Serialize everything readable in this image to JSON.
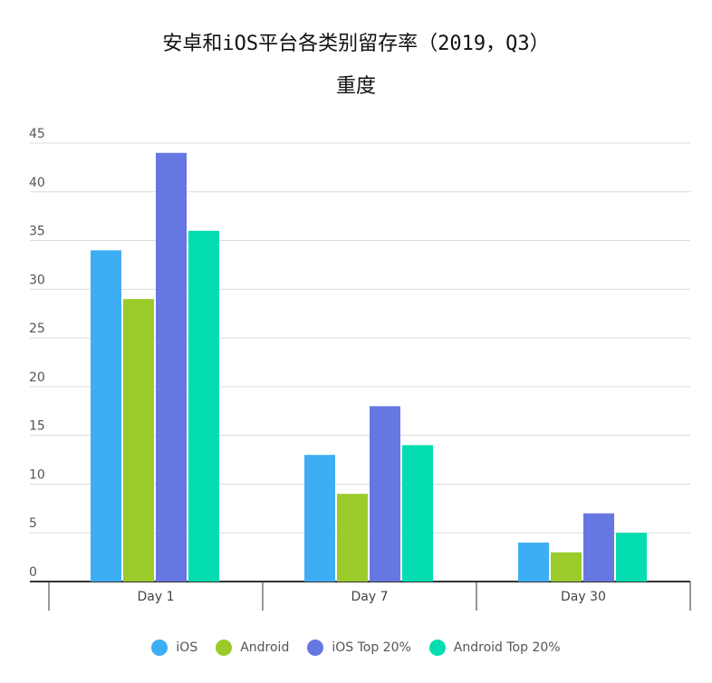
{
  "chart_data": {
    "type": "bar",
    "title": "安卓和iOS平台各类别留存率（2019，Q3）",
    "subtitle": "重度",
    "categories": [
      "Day 1",
      "Day 7",
      "Day 30"
    ],
    "series": [
      {
        "name": "iOS",
        "values": [
          34,
          13,
          4
        ],
        "color": "#3daef3"
      },
      {
        "name": "Android",
        "values": [
          29,
          9,
          3
        ],
        "color": "#9acb2b"
      },
      {
        "name": "iOS Top 20%",
        "values": [
          44,
          18,
          7
        ],
        "color": "#6677e2"
      },
      {
        "name": "Android Top 20%",
        "values": [
          36,
          14,
          5
        ],
        "color": "#03ddb0"
      }
    ],
    "ylim": [
      0,
      45
    ],
    "yticks": [
      0,
      5,
      10,
      15,
      20,
      25,
      30,
      35,
      40,
      45
    ],
    "grid": true,
    "legend": "bottom"
  }
}
